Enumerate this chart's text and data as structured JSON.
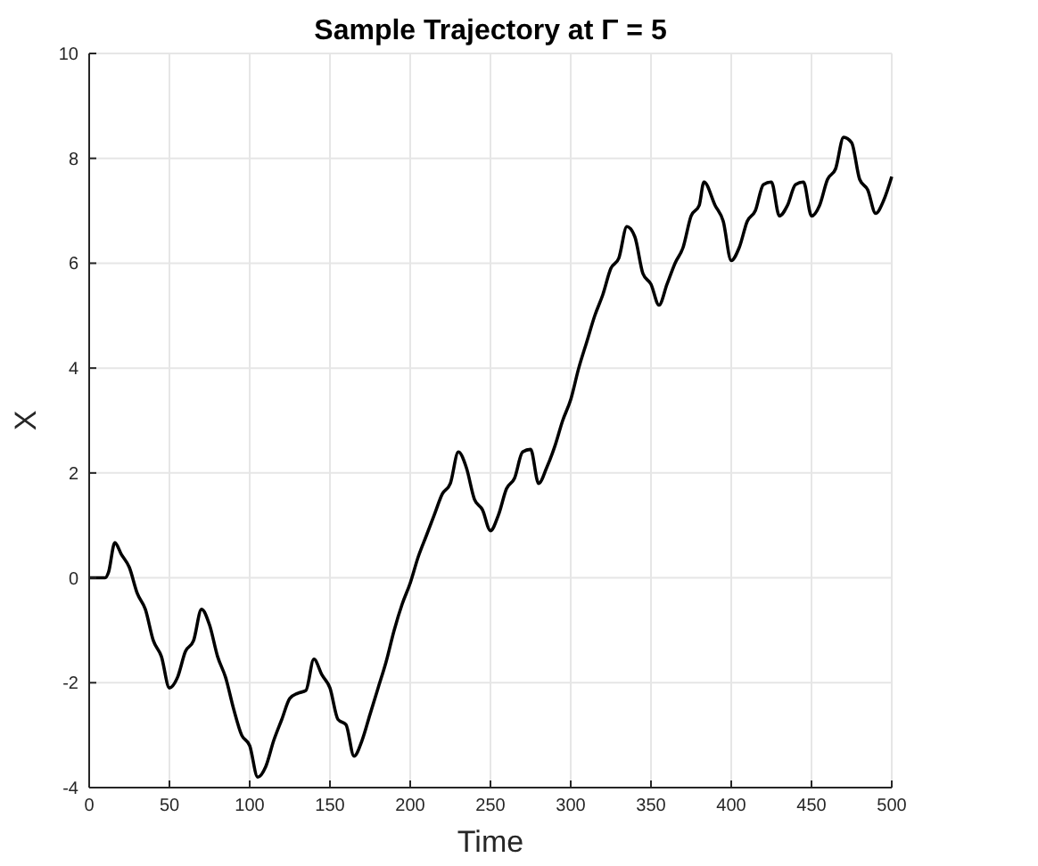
{
  "chart_data": {
    "type": "line",
    "title": "Sample Trajectory at Γ = 5",
    "xlabel": "Time",
    "ylabel": "X",
    "x": [
      0,
      10,
      12,
      16,
      20,
      25,
      30,
      35,
      40,
      45,
      50,
      55,
      60,
      65,
      70,
      75,
      80,
      85,
      90,
      95,
      100,
      105,
      110,
      115,
      120,
      125,
      130,
      135,
      140,
      145,
      150,
      155,
      160,
      165,
      170,
      175,
      180,
      185,
      190,
      195,
      200,
      205,
      210,
      215,
      220,
      225,
      230,
      235,
      240,
      245,
      250,
      255,
      260,
      265,
      270,
      275,
      280,
      285,
      290,
      295,
      300,
      305,
      310,
      315,
      320,
      325,
      330,
      335,
      340,
      345,
      350,
      355,
      360,
      365,
      370,
      375,
      380,
      383,
      390,
      395,
      400,
      405,
      410,
      415,
      420,
      425,
      430,
      435,
      440,
      445,
      450,
      455,
      460,
      465,
      470,
      475,
      480,
      485,
      490,
      495,
      500
    ],
    "series": [
      {
        "color": "#000000",
        "values": [
          0,
          0,
          0.1,
          0.67,
          0.45,
          0.2,
          -0.3,
          -0.6,
          -1.2,
          -1.5,
          -2.1,
          -1.9,
          -1.4,
          -1.2,
          -0.6,
          -0.9,
          -1.5,
          -1.9,
          -2.5,
          -3.0,
          -3.2,
          -3.8,
          -3.6,
          -3.1,
          -2.7,
          -2.3,
          -2.2,
          -2.15,
          -1.55,
          -1.85,
          -2.1,
          -2.7,
          -2.8,
          -3.4,
          -3.1,
          -2.6,
          -2.1,
          -1.6,
          -1.0,
          -0.5,
          -0.1,
          0.4,
          0.8,
          1.2,
          1.6,
          1.8,
          2.4,
          2.1,
          1.5,
          1.3,
          0.9,
          1.2,
          1.7,
          1.9,
          2.4,
          2.45,
          1.8,
          2.1,
          2.5,
          3.0,
          3.4,
          4.0,
          4.5,
          5.0,
          5.4,
          5.9,
          6.1,
          6.7,
          6.5,
          5.8,
          5.6,
          5.2,
          5.6,
          6.0,
          6.3,
          6.9,
          7.1,
          7.55,
          7.1,
          6.8,
          6.05,
          6.3,
          6.8,
          7.0,
          7.5,
          7.55,
          6.9,
          7.1,
          7.5,
          7.55,
          6.9,
          7.1,
          7.6,
          7.8,
          8.4,
          8.3,
          7.6,
          7.4,
          6.95,
          7.2,
          7.65
        ]
      }
    ],
    "xlim": [
      0,
      500
    ],
    "xticks": [
      0,
      50,
      100,
      150,
      200,
      250,
      300,
      350,
      400,
      450,
      500
    ],
    "ylim": [
      -4,
      10
    ],
    "yticks": [
      -4,
      -2,
      0,
      2,
      4,
      6,
      8,
      10
    ],
    "grid": true,
    "marker": "none",
    "line_style": "solid"
  }
}
